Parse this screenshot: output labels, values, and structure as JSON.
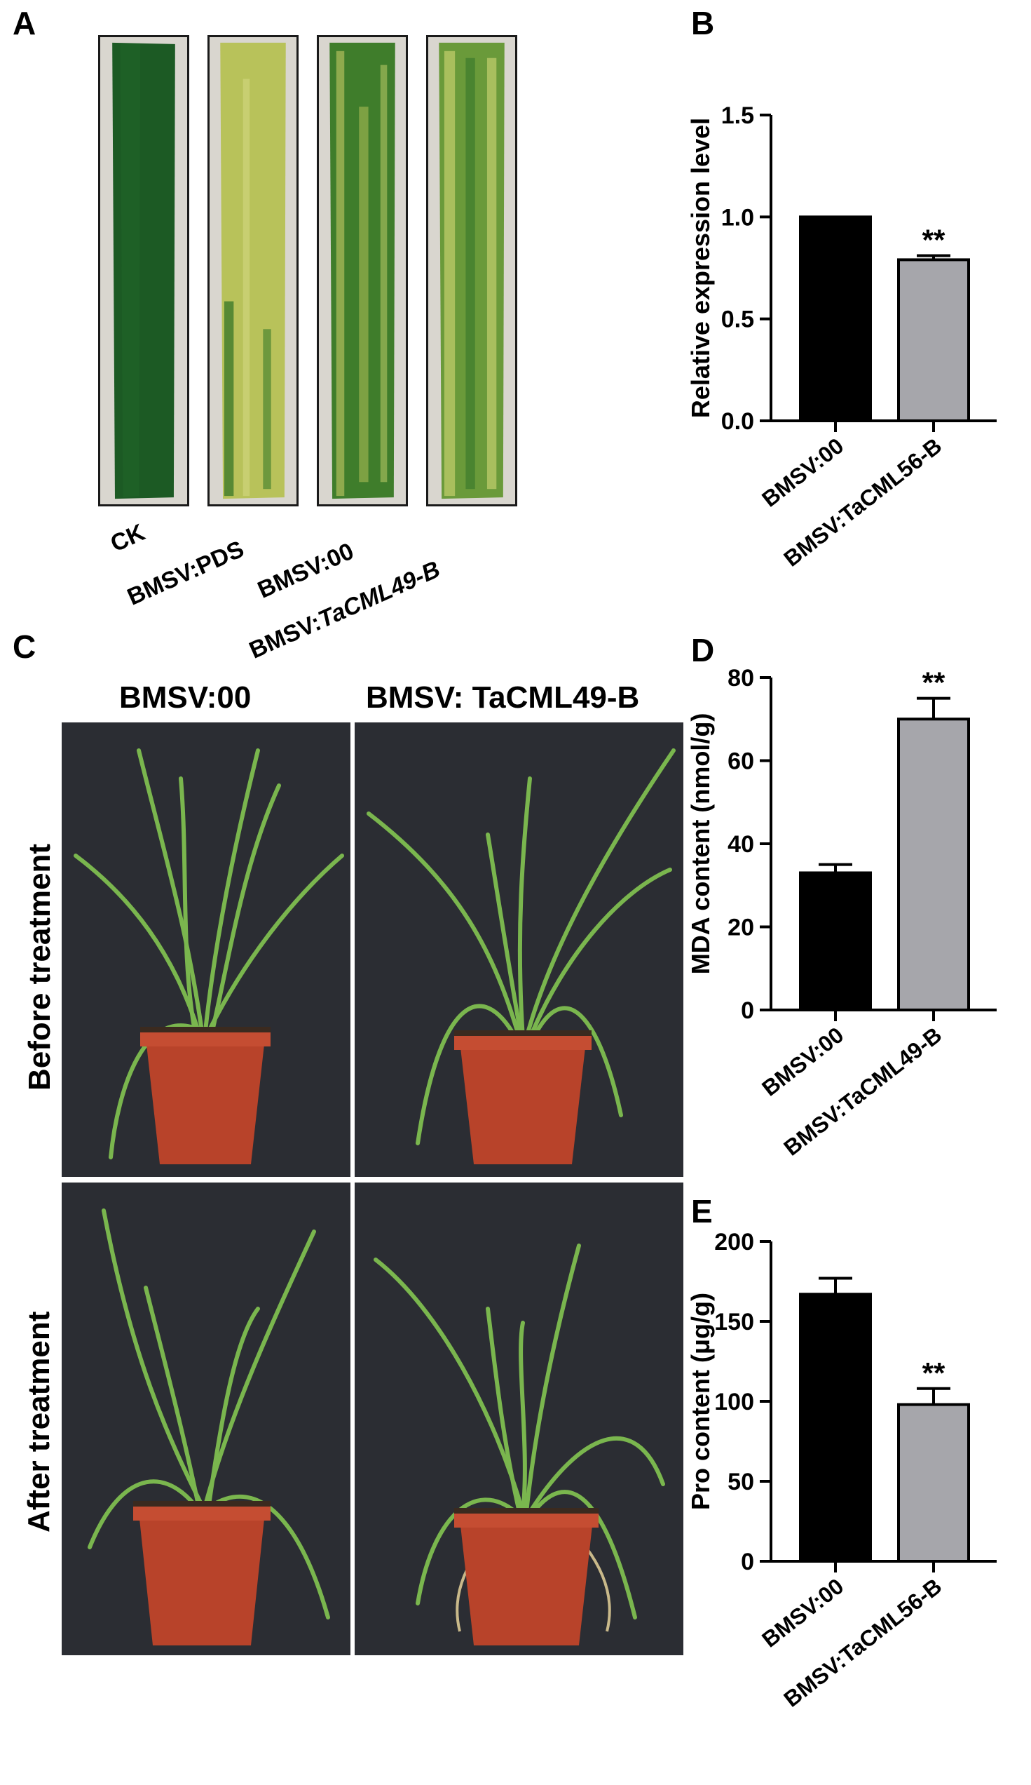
{
  "panels": {
    "a": "A",
    "b": "B",
    "c": "C",
    "d": "D",
    "e": "E"
  },
  "panel_a": {
    "leaves": [
      {
        "label": "CK",
        "style": "dark"
      },
      {
        "label": "BMSV:PDS",
        "style": "bleached"
      },
      {
        "label": "BMSV:00",
        "style": "mosaic"
      },
      {
        "label_prefix": "BMSV:",
        "label_italic": "TaCML49-B",
        "style": "mosaic-light"
      }
    ]
  },
  "panel_c": {
    "col_left": "BMSV:00",
    "col_right": "BMSV: TaCML49-B",
    "row_top": "Before treatment",
    "row_bottom": "After treatment"
  },
  "colors": {
    "bar_control": "#000000",
    "bar_treated": "#a6a6ab",
    "pot": "#b8432a",
    "leaf_green": "#2f7a2a",
    "photo_bg": "#2b2d33"
  },
  "chart_data": [
    {
      "id": "B",
      "type": "bar",
      "categories": [
        "BMSV:00",
        "BMSV:TaCML56-B"
      ],
      "values": [
        1.0,
        0.79
      ],
      "errors": [
        0,
        0.02
      ],
      "significance": [
        "",
        "**"
      ],
      "ylabel": "Relative expression level",
      "ylim": [
        0,
        1.5
      ],
      "yticks": [
        "0.0",
        "0.5",
        "1.0",
        "1.5"
      ],
      "ytick_values": [
        0,
        0.5,
        1.0,
        1.5
      ]
    },
    {
      "id": "D",
      "type": "bar",
      "categories": [
        "BMSV:00",
        "BMSV:TaCML49-B"
      ],
      "values": [
        33,
        70
      ],
      "errors": [
        2,
        5
      ],
      "significance": [
        "",
        "**"
      ],
      "ylabel": "MDA content (nmol/g)",
      "ylim": [
        0,
        80
      ],
      "yticks": [
        "0",
        "20",
        "40",
        "60",
        "80"
      ],
      "ytick_values": [
        0,
        20,
        40,
        60,
        80
      ]
    },
    {
      "id": "E",
      "type": "bar",
      "categories": [
        "BMSV:00",
        "BMSV:TaCML56-B"
      ],
      "values": [
        167,
        98
      ],
      "errors": [
        10,
        10
      ],
      "significance": [
        "",
        "**"
      ],
      "ylabel": "Pro content (μg/g)",
      "ylim": [
        0,
        200
      ],
      "yticks": [
        "0",
        "50",
        "100",
        "150",
        "200"
      ],
      "ytick_values": [
        0,
        50,
        100,
        150,
        200
      ]
    }
  ]
}
